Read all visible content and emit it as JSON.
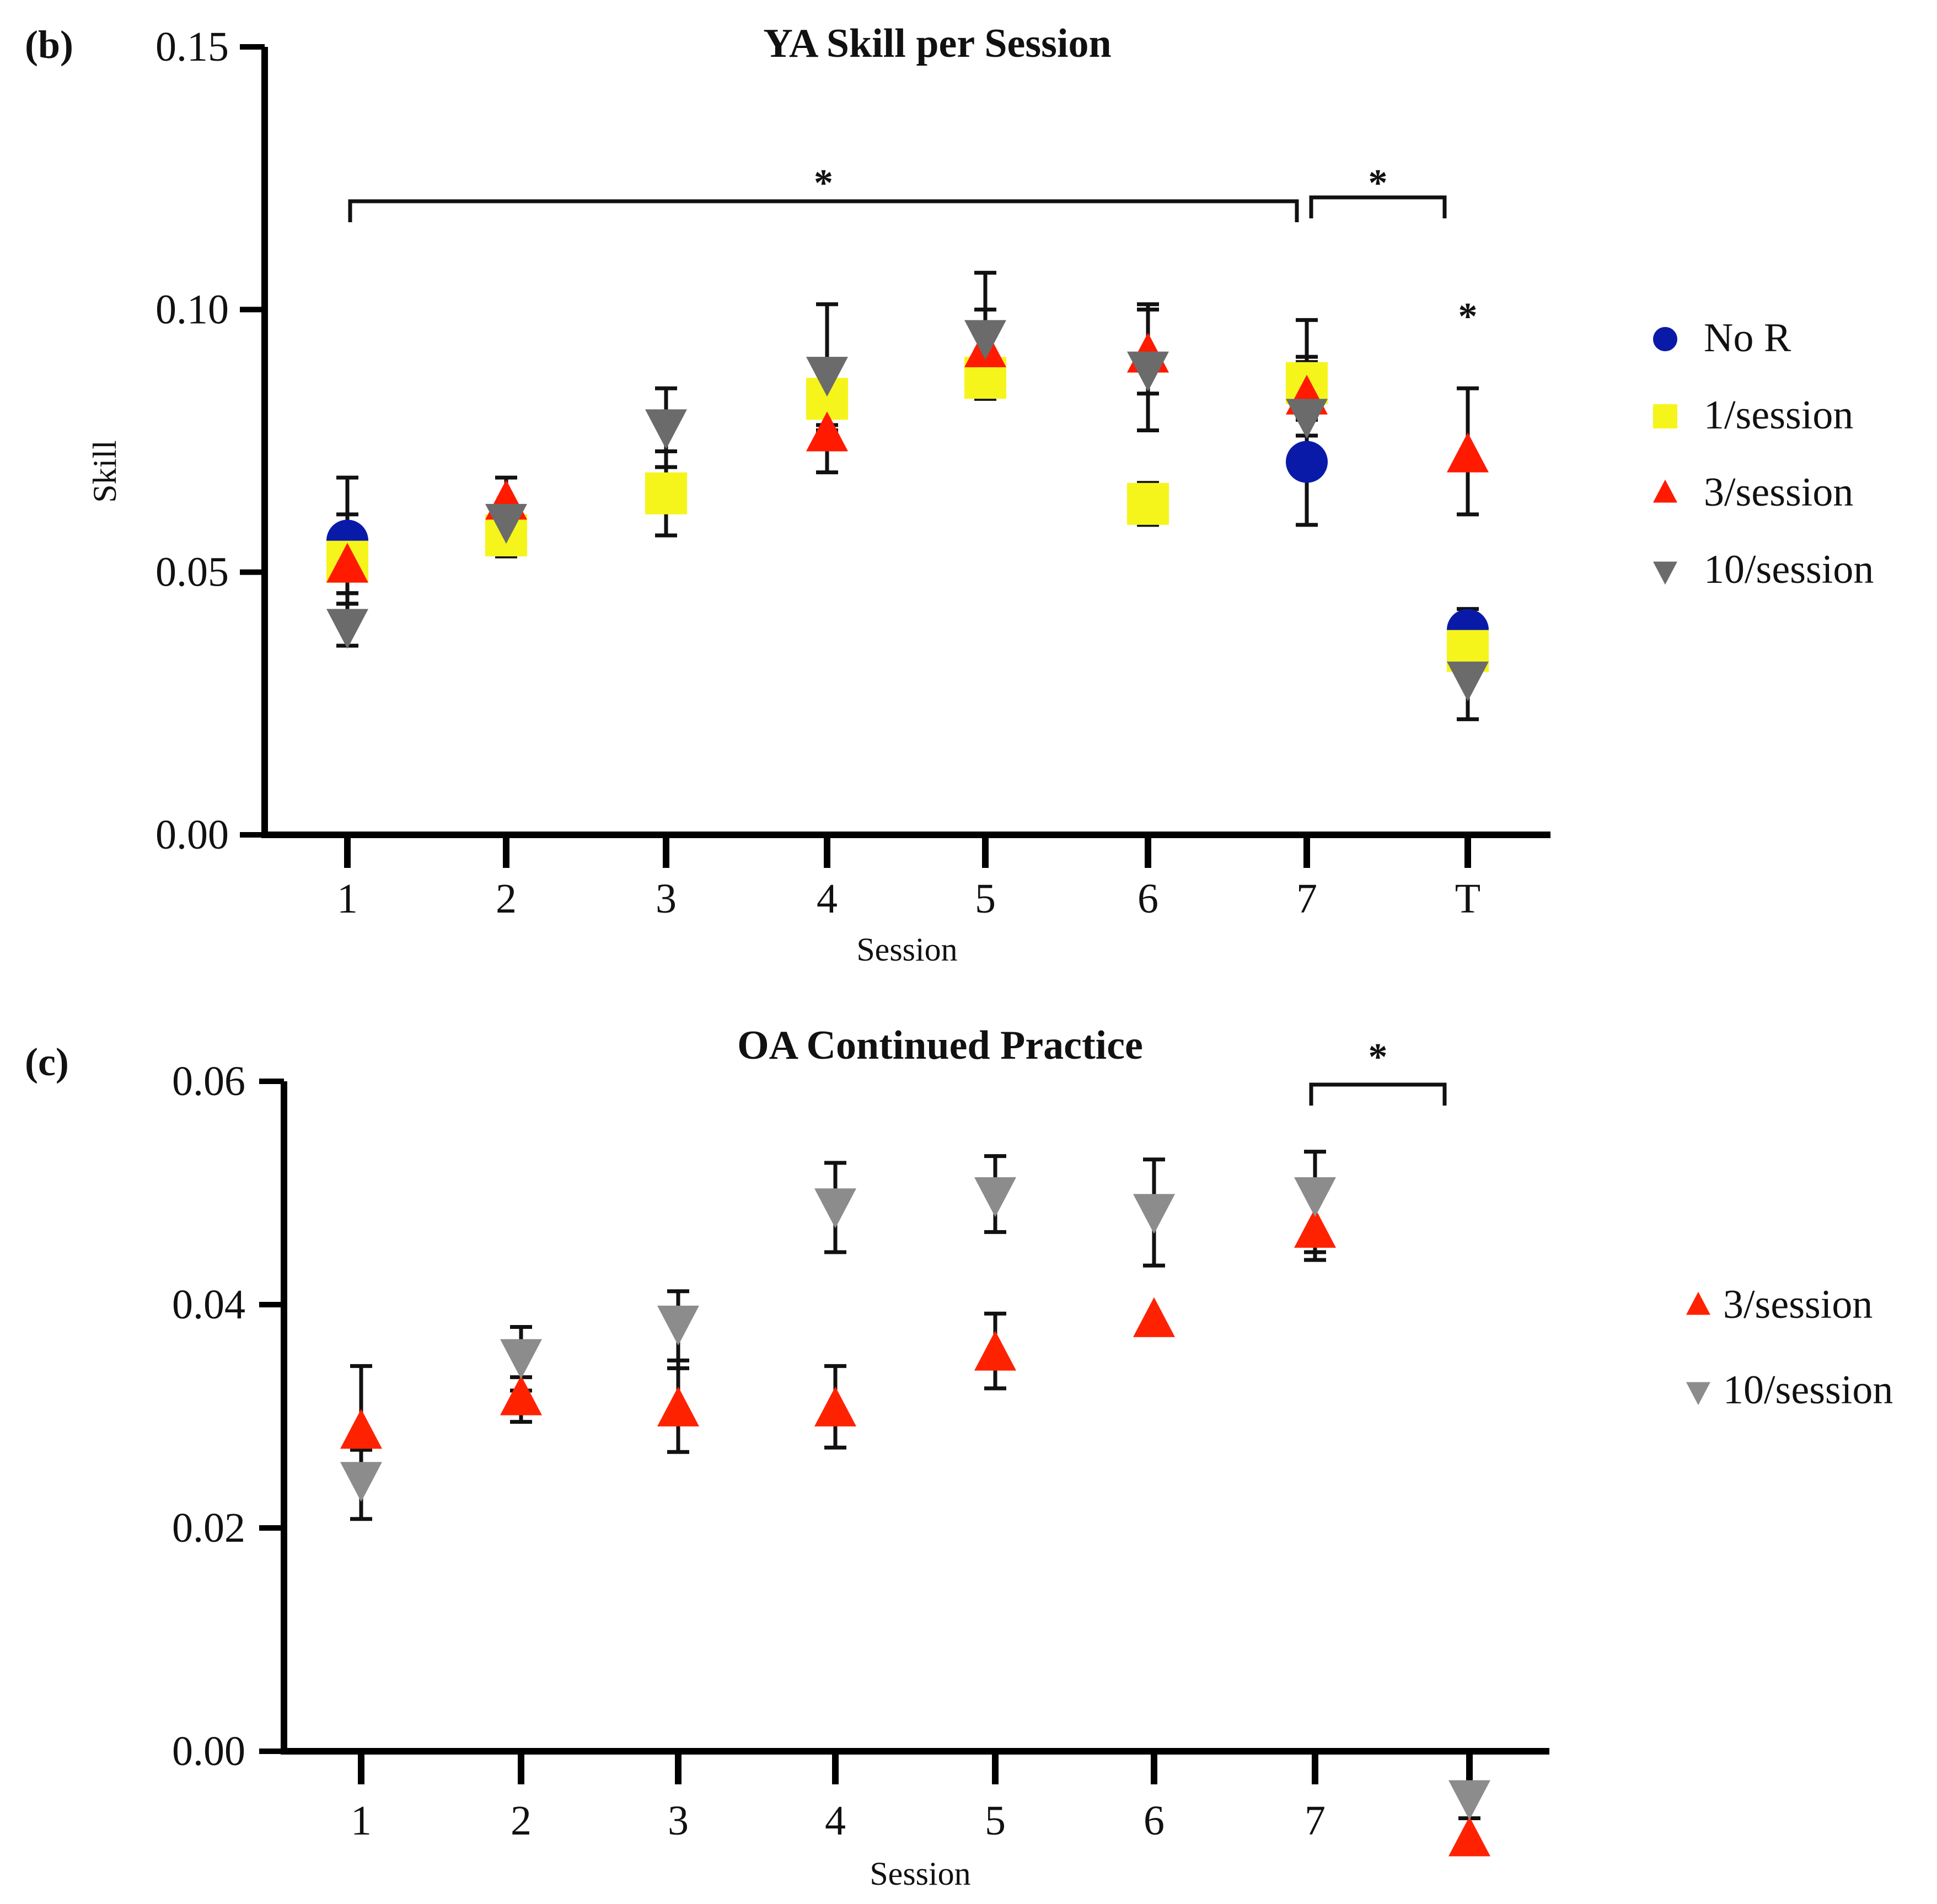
{
  "chart_data": [
    {
      "type": "scatter",
      "panel_label": "(b)",
      "title": "YA Skill per Session",
      "xlabel": "Session",
      "ylabel": "Skill",
      "categories": [
        "1",
        "2",
        "3",
        "4",
        "5",
        "6",
        "7",
        "T"
      ],
      "ylim": [
        0,
        0.15
      ],
      "yticks": [
        "0.00",
        "0.05",
        "0.10",
        "0.15"
      ],
      "grid": false,
      "legend_position": "right",
      "series": [
        {
          "name": "No R",
          "marker": "circle",
          "color": "#0a1aa8",
          "values": [
            0.056,
            null,
            null,
            null,
            null,
            null,
            0.071,
            0.039
          ],
          "err_hi": [
            0.068,
            null,
            null,
            null,
            null,
            null,
            0.079,
            0.043
          ],
          "err_lo": [
            0.044,
            null,
            null,
            null,
            null,
            null,
            0.059,
            0.035
          ]
        },
        {
          "name": "1/session",
          "marker": "square",
          "color": "#f5f51c",
          "values": [
            0.052,
            0.057,
            0.065,
            0.083,
            0.087,
            0.063,
            0.086,
            0.035
          ],
          "err_hi": [
            0.061,
            0.061,
            0.073,
            0.088,
            0.09,
            0.067,
            0.098,
            0.037
          ],
          "err_lo": [
            0.046,
            0.053,
            0.057,
            0.078,
            0.083,
            0.059,
            0.074,
            0.033
          ]
        },
        {
          "name": "3/session",
          "marker": "triangle-up",
          "color": "#ff1a00",
          "values": [
            0.051,
            0.063,
            null,
            0.076,
            0.092,
            0.091,
            0.083,
            0.072
          ],
          "err_hi": [
            0.056,
            0.068,
            null,
            0.081,
            0.1,
            0.101,
            0.09,
            0.085
          ],
          "err_lo": [
            0.046,
            0.058,
            null,
            0.069,
            0.084,
            0.084,
            0.076,
            0.061
          ]
        },
        {
          "name": "10/session",
          "marker": "triangle-down",
          "color": "#6b6b6b",
          "values": [
            0.04,
            0.06,
            0.078,
            0.088,
            0.095,
            0.089,
            0.08,
            0.03
          ],
          "err_hi": [
            0.044,
            0.062,
            0.085,
            0.101,
            0.107,
            0.1,
            0.091,
            0.035
          ],
          "err_lo": [
            0.036,
            0.058,
            0.07,
            0.077,
            0.083,
            0.077,
            0.068,
            0.022
          ]
        }
      ],
      "annotations": [
        {
          "text": "*",
          "type": "bracket",
          "from": "1",
          "to": "7"
        },
        {
          "text": "*",
          "type": "bracket",
          "from": "7",
          "to": "T"
        },
        {
          "text": "*",
          "type": "marker",
          "at": "T"
        }
      ]
    },
    {
      "type": "scatter",
      "panel_label": "(c)",
      "title": "OA Continued Practice",
      "xlabel": "Session",
      "ylabel": "",
      "categories": [
        "1",
        "2",
        "3",
        "4",
        "5",
        "6",
        "7",
        ""
      ],
      "ylim": [
        0,
        0.06
      ],
      "yticks": [
        "0.00",
        "0.02",
        "0.04",
        "0.06"
      ],
      "grid": false,
      "legend_position": "right",
      "series": [
        {
          "name": "3/session",
          "marker": "triangle-up",
          "color": "#ff2200",
          "values": [
            0.0285,
            0.0315,
            0.0305,
            0.0305,
            0.0355,
            0.0385,
            0.0465,
            -0.008
          ],
          "err_hi": [
            0.0345,
            0.0335,
            0.035,
            0.0345,
            0.0392,
            null,
            0.05,
            null
          ],
          "err_lo": [
            0.027,
            0.0295,
            0.0268,
            0.0272,
            0.0325,
            null,
            0.044,
            null
          ]
        },
        {
          "name": "10/session",
          "marker": "triangle-down",
          "color": "#8c8c8c",
          "values": [
            0.0245,
            0.0355,
            0.0385,
            0.049,
            0.05,
            0.0485,
            0.05,
            -0.004
          ],
          "err_hi": [
            0.0275,
            0.038,
            0.0412,
            0.0527,
            0.0533,
            0.053,
            0.0537,
            null
          ],
          "err_lo": [
            0.0208,
            0.0323,
            0.0343,
            0.0447,
            0.0465,
            0.0435,
            0.0447,
            -0.006
          ]
        }
      ],
      "annotations": [
        {
          "text": "*",
          "type": "bracket",
          "from": "7",
          "to": "T"
        }
      ]
    }
  ]
}
